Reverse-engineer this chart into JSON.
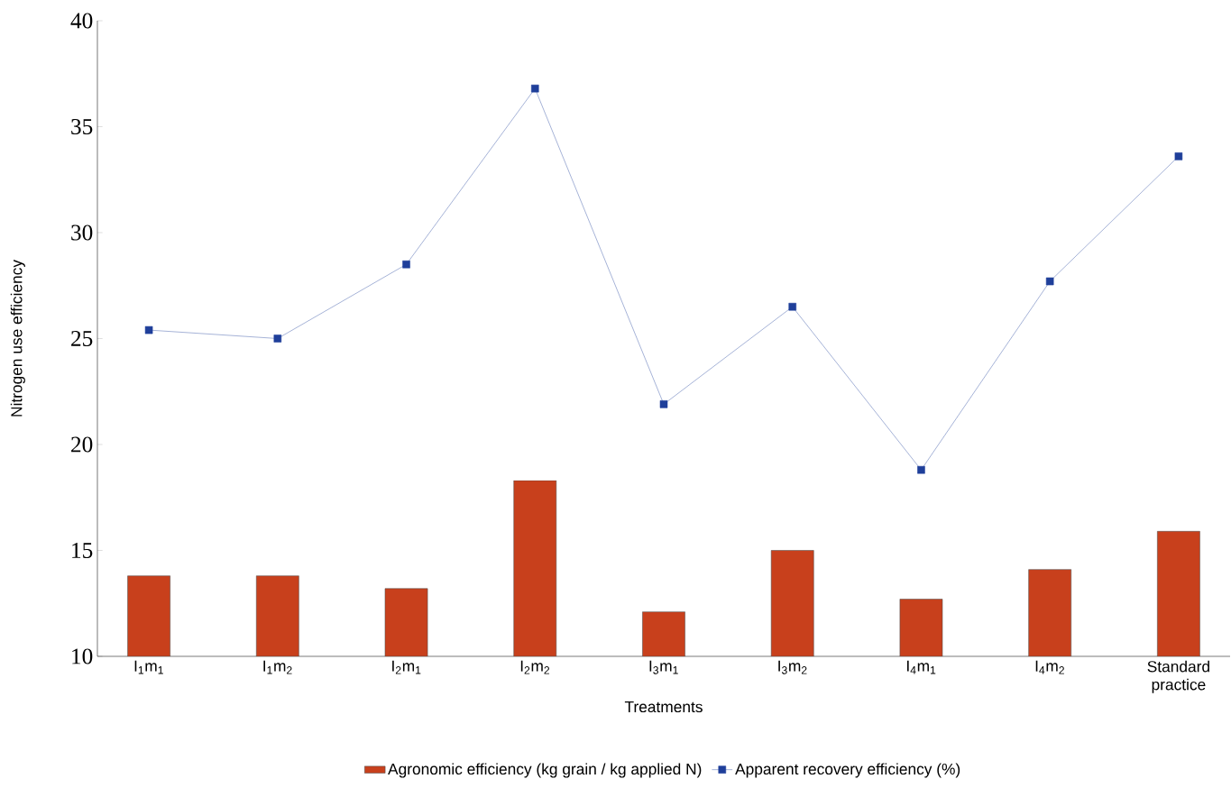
{
  "chart_data": {
    "type": "bar",
    "xlabel": "Treatments",
    "ylabel": "Nitrogen use efficiency",
    "categories": [
      "I$_{1}$m$_{1}$",
      "I$_{1}$m$_{2}$",
      "I$_{2}$m$_{1}$",
      "I$_{2}$m$_{2}$",
      "I$_{3}$m$_{1}$",
      "I$_{3}$m$_{2}$",
      "I$_{4}$m$_{1}$",
      "I$_{4}$m$_{2}$",
      "Standard practice"
    ],
    "series": [
      {
        "name": "Agronomic efficiency (kg grain / kg applied N)",
        "color": "#c8401c",
        "values": [
          13.8,
          13.8,
          13.2,
          18.3,
          12.1,
          15.0,
          12.7,
          14.1,
          15.9
        ]
      },
      {
        "name": "Apparent recovery efficiency (%)",
        "type": "line",
        "color": "#1f3f9a",
        "marker": "square",
        "values": [
          25.4,
          25.0,
          28.5,
          36.8,
          21.9,
          26.5,
          18.8,
          27.7,
          33.6
        ]
      }
    ],
    "ylim": [
      10,
      40
    ],
    "yticks": [
      10,
      15,
      20,
      25,
      30,
      35,
      40
    ],
    "grid": false,
    "legend": "bottom"
  }
}
